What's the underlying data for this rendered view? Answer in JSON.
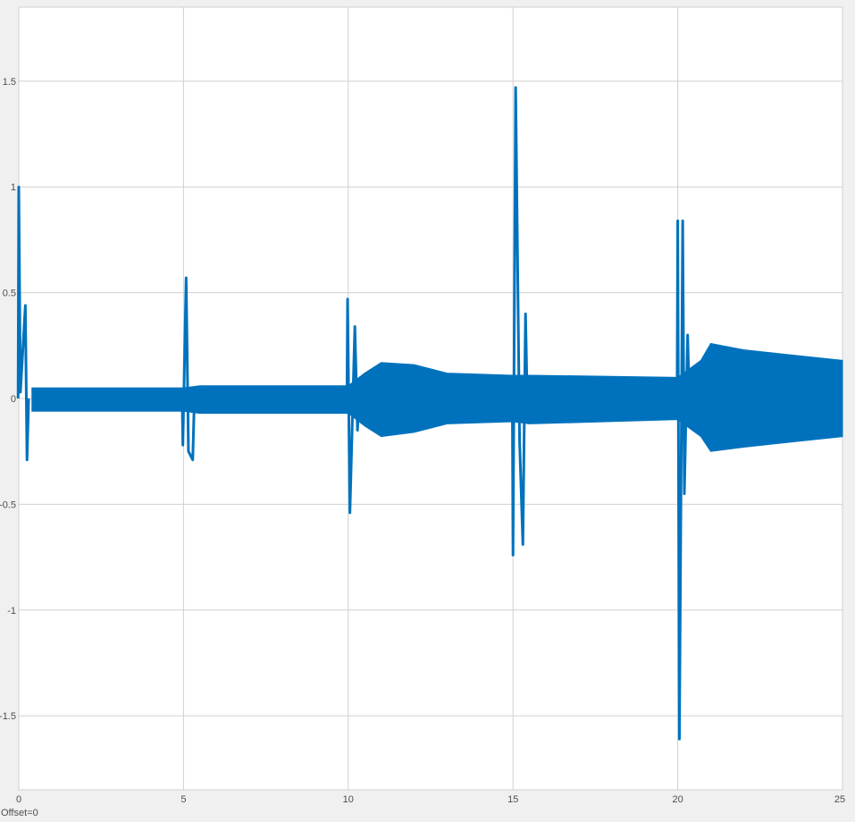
{
  "chart_data": {
    "type": "line",
    "title": "",
    "xlabel": "",
    "ylabel": "",
    "xlim": [
      0,
      25
    ],
    "ylim": [
      -1.85,
      1.85
    ],
    "grid": true,
    "line_color": "#0072BD",
    "x_ticks": [
      0,
      5,
      10,
      15,
      20,
      25
    ],
    "x_tick_labels": [
      "0",
      "5",
      "10",
      "15",
      "20",
      "25"
    ],
    "y_ticks": [
      1.5,
      1,
      0.5,
      0,
      -0.5,
      -1,
      -1.5
    ],
    "y_tick_labels": [
      "1.5",
      "1",
      "0.5",
      "0",
      "-0.5",
      "-1",
      "-1.5"
    ],
    "series": [
      {
        "description_points": "oscillation envelope (upper, lower) with transient spikes",
        "envelope": [
          {
            "x": 0.4,
            "upper": 0.05,
            "lower": -0.06
          },
          {
            "x": 5.0,
            "upper": 0.05,
            "lower": -0.06
          },
          {
            "x": 5.5,
            "upper": 0.06,
            "lower": -0.07
          },
          {
            "x": 10.0,
            "upper": 0.06,
            "lower": -0.07
          },
          {
            "x": 10.5,
            "upper": 0.12,
            "lower": -0.13
          },
          {
            "x": 11.0,
            "upper": 0.17,
            "lower": -0.18
          },
          {
            "x": 12.0,
            "upper": 0.16,
            "lower": -0.16
          },
          {
            "x": 13.0,
            "upper": 0.12,
            "lower": -0.12
          },
          {
            "x": 15.0,
            "upper": 0.11,
            "lower": -0.11
          },
          {
            "x": 15.5,
            "upper": 0.11,
            "lower": -0.12
          },
          {
            "x": 20.0,
            "upper": 0.1,
            "lower": -0.1
          },
          {
            "x": 20.7,
            "upper": 0.18,
            "lower": -0.18
          },
          {
            "x": 21.0,
            "upper": 0.26,
            "lower": -0.25
          },
          {
            "x": 22.0,
            "upper": 0.23,
            "lower": -0.23
          },
          {
            "x": 25.0,
            "upper": 0.18,
            "lower": -0.18
          }
        ],
        "spikes": [
          {
            "x": 0.0,
            "y": 1.0
          },
          {
            "x": 0.05,
            "y": 0.03
          },
          {
            "x": 0.2,
            "y": 0.44
          },
          {
            "x": 0.25,
            "y": -0.29
          },
          {
            "x": 4.98,
            "y": -0.22
          },
          {
            "x": 5.08,
            "y": 0.57
          },
          {
            "x": 5.15,
            "y": -0.25
          },
          {
            "x": 5.28,
            "y": -0.29
          },
          {
            "x": 9.98,
            "y": 0.47
          },
          {
            "x": 10.05,
            "y": -0.54
          },
          {
            "x": 10.2,
            "y": 0.34
          },
          {
            "x": 10.28,
            "y": -0.15
          },
          {
            "x": 15.0,
            "y": -0.74
          },
          {
            "x": 15.08,
            "y": 1.47
          },
          {
            "x": 15.2,
            "y": -0.2
          },
          {
            "x": 15.3,
            "y": -0.69
          },
          {
            "x": 15.38,
            "y": 0.4
          },
          {
            "x": 20.0,
            "y": 0.84
          },
          {
            "x": 20.05,
            "y": -1.61
          },
          {
            "x": 20.15,
            "y": 0.84
          },
          {
            "x": 20.2,
            "y": -0.45
          },
          {
            "x": 20.3,
            "y": 0.3
          }
        ]
      }
    ]
  },
  "footer": {
    "offset_text": "Offset=0"
  }
}
